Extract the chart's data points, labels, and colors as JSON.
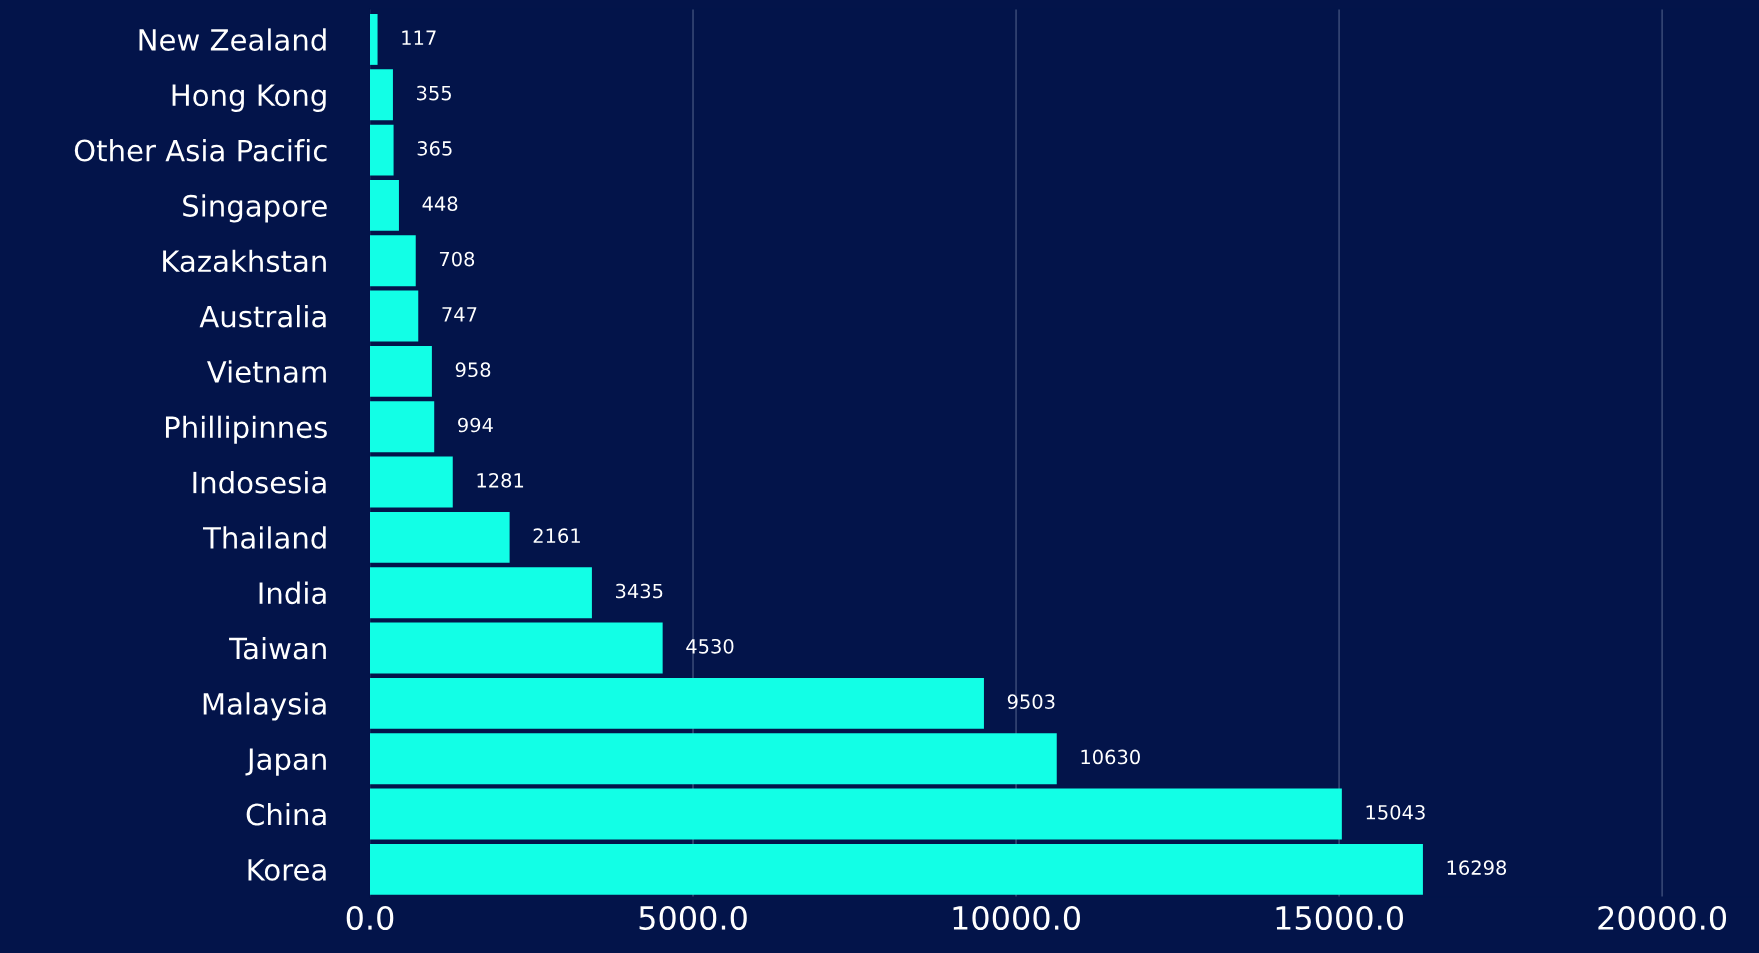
{
  "chart_data": {
    "type": "bar",
    "orientation": "horizontal",
    "categories": [
      "New Zealand",
      "Hong Kong",
      "Other Asia Pacific",
      "Singapore",
      "Kazakhstan",
      "Australia",
      "Vietnam",
      "Phillipinnes",
      "Indosesia",
      "Thailand",
      "India",
      "Taiwan",
      "Malaysia",
      "Japan",
      "China",
      "Korea"
    ],
    "values": [
      117,
      355,
      365,
      448,
      708,
      747,
      958,
      994,
      1281,
      2161,
      3435,
      4530,
      9503,
      10630,
      15043,
      16298
    ],
    "color": "#12ffe6",
    "xlim": [
      0,
      21500
    ],
    "xticks": [
      {
        "value": 0,
        "label": "0.0"
      },
      {
        "value": 5000,
        "label": "5000.0"
      },
      {
        "value": 10000,
        "label": "10000.0"
      },
      {
        "value": 15000,
        "label": "15000.0"
      },
      {
        "value": 20000,
        "label": "20000.0"
      }
    ],
    "grid": "x",
    "data_labels": true
  }
}
